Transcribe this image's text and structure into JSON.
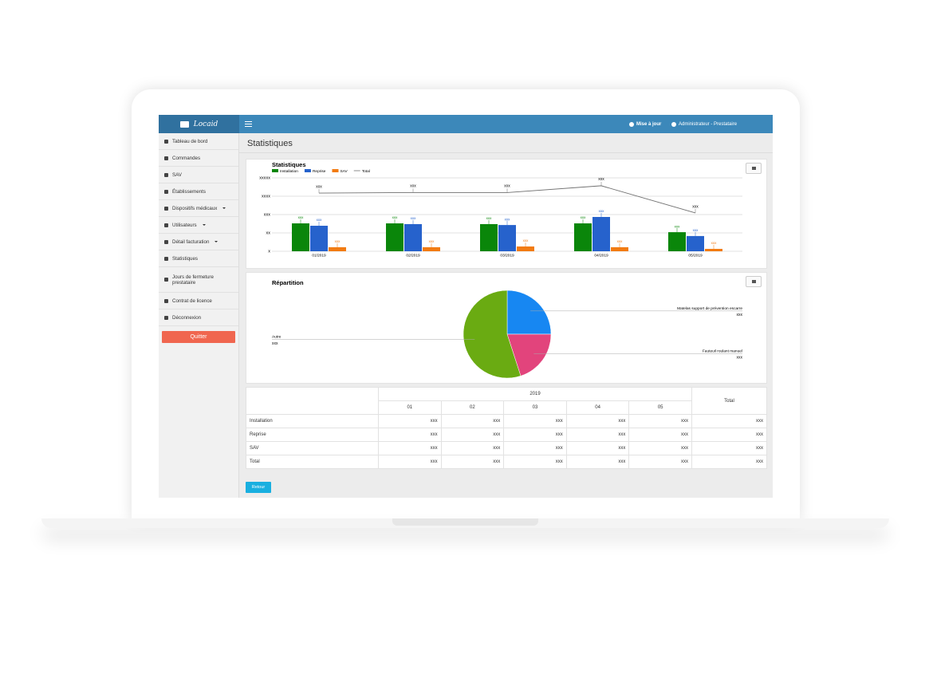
{
  "app": {
    "logo": "Locaid",
    "update": "Mise à jour",
    "user": "Administrateur - Prestataire",
    "page_title": "Statistiques",
    "sidebar": {
      "items": [
        "Tableau de bord",
        "Commandes",
        "SAV",
        "Établissements",
        "Dispositifs médicaux",
        "Utilisateurs",
        "Détail facturation",
        "Statistiques",
        "Jours de fermeture prestataire",
        "Contrat de licence",
        "Déconnexion"
      ],
      "quit": "Quitter"
    },
    "back": "Retour"
  },
  "chart_data": [
    {
      "type": "bar",
      "title": "Statistiques",
      "categories": [
        "01/2019",
        "02/2019",
        "03/2019",
        "04/2019",
        "05/2019"
      ],
      "series": [
        {
          "name": "Installation",
          "color": "#0a860a",
          "values": [
            1.52,
            1.52,
            1.48,
            1.52,
            1.04
          ],
          "value_labels": [
            "xxx",
            "xxx",
            "xxx",
            "xxx",
            "xxx"
          ]
        },
        {
          "name": "Reprise",
          "color": "#2662cc",
          "values": [
            1.39,
            1.48,
            1.43,
            1.87,
            0.83
          ],
          "value_labels": [
            "xxx",
            "xxx",
            "xxx",
            "xxx",
            "xxx"
          ]
        },
        {
          "name": "SAV",
          "color": "#f27b12",
          "values": [
            0.22,
            0.22,
            0.26,
            0.22,
            0.13
          ],
          "value_labels": [
            "xxx",
            "xxx",
            "xxx",
            "xxx",
            "xxx"
          ]
        },
        {
          "name": "Total",
          "type": "line",
          "color": "#707070",
          "values": [
            3.17,
            3.2,
            3.2,
            3.57,
            2.09
          ],
          "value_labels": [
            "xxx",
            "xxx",
            "xxx",
            "xxx",
            "xxx"
          ]
        }
      ],
      "ylim": [
        0,
        4
      ],
      "yticks": [
        {
          "value": 0,
          "label": "x"
        },
        {
          "value": 1,
          "label": "xx"
        },
        {
          "value": 2,
          "label": "xxx"
        },
        {
          "value": 3,
          "label": "xxxx"
        },
        {
          "value": 4,
          "label": "xxxxx"
        }
      ],
      "grid": true
    },
    {
      "type": "pie",
      "title": "Répartition",
      "categories": [
        "Matelas support de prévention escarre",
        "Fauteuil roulant manuel",
        "Autre"
      ],
      "values": [
        25,
        20,
        55
      ],
      "value_labels": [
        "xxx",
        "xxx",
        "xxx"
      ],
      "colors": [
        "#1787f2",
        "#e2447c",
        "#6aab12"
      ]
    }
  ],
  "table": {
    "year": "2019",
    "months": [
      "01",
      "02",
      "03",
      "04",
      "05"
    ],
    "total_header": "Total",
    "rows": [
      {
        "label": "Installation",
        "cells": [
          "xxx",
          "xxx",
          "xxx",
          "xxx",
          "xxx",
          "xxx"
        ]
      },
      {
        "label": "Reprise",
        "cells": [
          "xxx",
          "xxx",
          "xxx",
          "xxx",
          "xxx",
          "xxx"
        ]
      },
      {
        "label": "SAV",
        "cells": [
          "xxx",
          "xxx",
          "xxx",
          "xxx",
          "xxx",
          "xxx"
        ]
      },
      {
        "label": "Total",
        "cells": [
          "xxx",
          "xxx",
          "xxx",
          "xxx",
          "xxx",
          "xxx"
        ]
      }
    ]
  }
}
